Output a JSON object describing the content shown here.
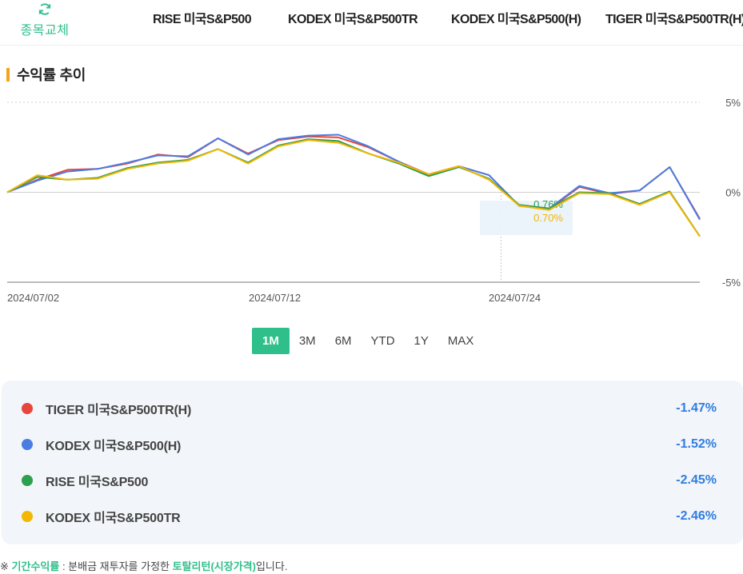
{
  "header": {
    "swap_label": "종목교체",
    "tabs": [
      "RISE 미국S&P500",
      "KODEX 미국S&P500TR",
      "KODEX 미국S&P500(H)",
      "TIGER 미국S&P500TR(H)"
    ]
  },
  "section": {
    "title": "수익률 추이"
  },
  "chart_data": {
    "type": "line",
    "title": "",
    "xlabel": "",
    "ylabel": "",
    "ylim": [
      -5,
      5
    ],
    "y_ticks": [
      "5%",
      "0%",
      "-5%"
    ],
    "x_tick_labels": [
      "2024/07/02",
      "2024/07/12",
      "2024/07/24"
    ],
    "grid": "horizontal dotted",
    "series": [
      {
        "name": "TIGER 미국S&P500TR(H)",
        "color": "#e8453c",
        "values": [
          0,
          0.7,
          1.25,
          1.3,
          1.6,
          2.1,
          1.95,
          3.0,
          2.15,
          2.9,
          3.1,
          3.05,
          2.5,
          1.7,
          1.0,
          1.45,
          0.95,
          -0.75,
          -0.95,
          0.3,
          -0.1,
          0.1,
          1.4,
          -1.47
        ]
      },
      {
        "name": "KODEX 미국S&P500(H)",
        "color": "#4a7de2",
        "values": [
          0,
          0.65,
          1.15,
          1.3,
          1.65,
          2.05,
          2.0,
          3.0,
          2.1,
          2.95,
          3.15,
          3.2,
          2.55,
          1.7,
          0.95,
          1.45,
          0.95,
          -0.76,
          -0.9,
          0.35,
          -0.05,
          0.1,
          1.4,
          -1.52
        ]
      },
      {
        "name": "RISE 미국S&P500",
        "color": "#2e9e4f",
        "values": [
          0,
          0.85,
          0.7,
          0.8,
          1.35,
          1.65,
          1.8,
          2.4,
          1.65,
          2.6,
          2.95,
          2.85,
          2.15,
          1.6,
          0.9,
          1.4,
          0.75,
          -0.7,
          -0.9,
          0.0,
          -0.05,
          -0.65,
          0.05,
          -2.45
        ]
      },
      {
        "name": "KODEX 미국S&P500TR",
        "color": "#f2b705",
        "values": [
          0,
          0.95,
          0.7,
          0.75,
          1.3,
          1.6,
          1.75,
          2.4,
          1.6,
          2.55,
          2.9,
          2.75,
          2.15,
          1.65,
          1.0,
          1.45,
          0.7,
          -0.75,
          -0.98,
          -0.05,
          -0.1,
          -0.7,
          0.0,
          -2.46
        ]
      }
    ],
    "tooltip": {
      "values": [
        "0.76%",
        "0.70%"
      ],
      "colors": [
        "#2e9e4f",
        "#f2b705"
      ]
    }
  },
  "periods": {
    "items": [
      "1M",
      "3M",
      "6M",
      "YTD",
      "1Y",
      "MAX"
    ],
    "active": "1M"
  },
  "legend": {
    "items": [
      {
        "name": "TIGER 미국S&P500TR(H)",
        "value": "-1.47%",
        "color": "#e8453c"
      },
      {
        "name": "KODEX 미국S&P500(H)",
        "value": "-1.52%",
        "color": "#4a7de2"
      },
      {
        "name": "RISE 미국S&P500",
        "value": "-2.45%",
        "color": "#2e9e4f"
      },
      {
        "name": "KODEX 미국S&P500TR",
        "value": "-2.46%",
        "color": "#f2b705"
      }
    ]
  },
  "footnote": {
    "mark": "※",
    "term": "기간수익률",
    "middle": " : 분배금 재투자를 가정한 ",
    "emph": "토탈리턴(시장가격)",
    "end": "입니다."
  },
  "colors": {
    "accent": "#2fbf8a",
    "title_bar": "#f7a21b",
    "value_blue": "#2f7de1"
  }
}
